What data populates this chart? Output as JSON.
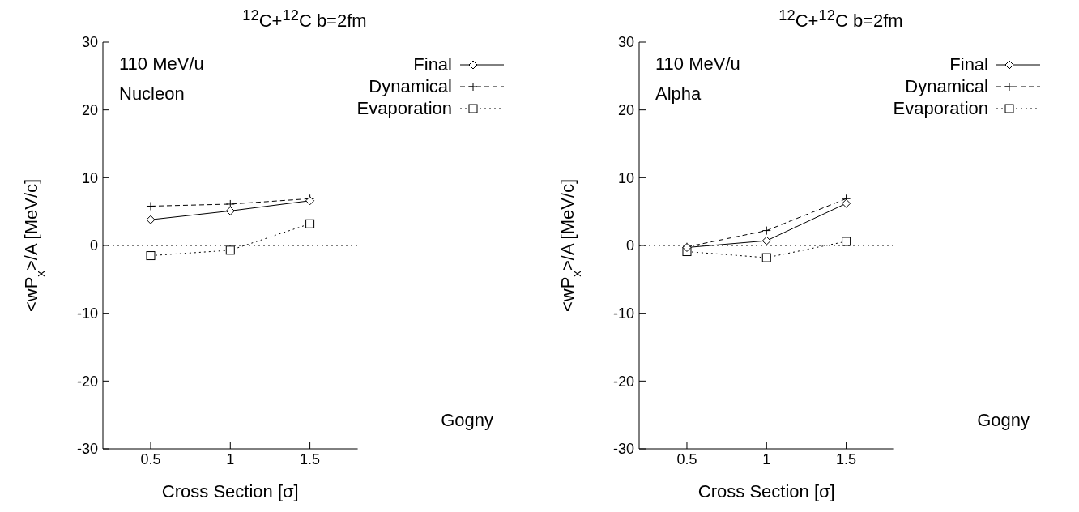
{
  "chart_data": [
    {
      "type": "line",
      "title": "$^{12}$C+$^{12}$C   b=2fm",
      "xlabel": "Cross Section [σ]",
      "ylabel": "<wP$_{x}$>/A [MeV/c]",
      "annotations": [
        "110 MeV/u",
        "Nucleon",
        "Gogny"
      ],
      "x": [
        0.5,
        1,
        1.5
      ],
      "series": [
        {
          "name": "Final",
          "color": "#000000",
          "marker": "diamond",
          "line_style": "solid",
          "values": [
            3.8,
            5.1,
            6.6
          ]
        },
        {
          "name": "Dynamical",
          "color": "#000000",
          "marker": "cross",
          "line_style": "dashed",
          "values": [
            5.8,
            6.1,
            6.9
          ]
        },
        {
          "name": "Evaporation",
          "color": "#000000",
          "marker": "square",
          "line_style": "dotted",
          "values": [
            -1.5,
            -0.7,
            3.2
          ]
        }
      ],
      "xlim": [
        0.2,
        1.8
      ],
      "xticks": [
        0.5,
        1,
        1.5
      ],
      "ylim": [
        -30,
        30
      ],
      "yticks": [
        -30,
        -20,
        -10,
        0,
        10,
        20,
        30
      ],
      "grid": false,
      "legend": "top right",
      "ref_lines": [
        {
          "axis": "y",
          "value": 0,
          "color": "#000000",
          "line_style": "dotted"
        }
      ]
    },
    {
      "type": "line",
      "title": "$^{12}$C+$^{12}$C   b=2fm",
      "xlabel": "Cross Section [σ]",
      "ylabel": "<wP$_{x}$>/A [MeV/c]",
      "annotations": [
        "110 MeV/u",
        "Alpha",
        "Gogny"
      ],
      "x": [
        0.5,
        1,
        1.5
      ],
      "series": [
        {
          "name": "Final",
          "color": "#000000",
          "marker": "diamond",
          "line_style": "solid",
          "values": [
            -0.3,
            0.7,
            6.2
          ]
        },
        {
          "name": "Dynamical",
          "color": "#000000",
          "marker": "cross",
          "line_style": "dashed",
          "values": [
            -0.2,
            2.2,
            6.9
          ]
        },
        {
          "name": "Evaporation",
          "color": "#000000",
          "marker": "square",
          "line_style": "dotted",
          "values": [
            -0.9,
            -1.8,
            0.6
          ]
        }
      ],
      "xlim": [
        0.2,
        1.8
      ],
      "xticks": [
        0.5,
        1,
        1.5
      ],
      "ylim": [
        -30,
        30
      ],
      "yticks": [
        -30,
        -20,
        -10,
        0,
        10,
        20,
        30
      ],
      "grid": false,
      "legend": "top right",
      "ref_lines": [
        {
          "axis": "y",
          "value": 0,
          "color": "#000000",
          "line_style": "dotted"
        }
      ]
    }
  ]
}
